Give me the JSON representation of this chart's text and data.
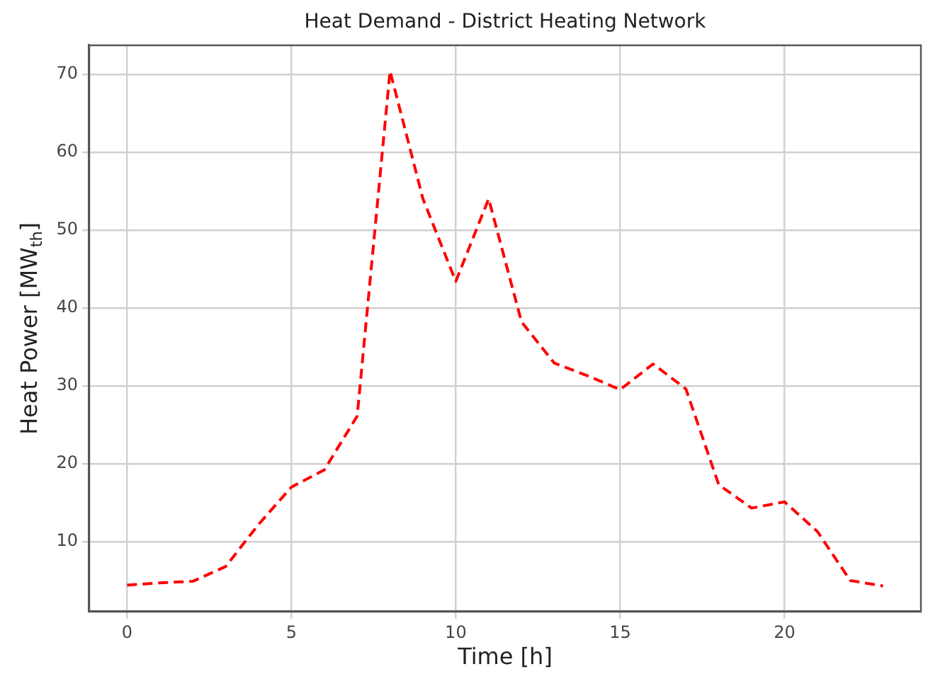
{
  "chart_data": {
    "type": "line",
    "title": "Heat Demand - District Heating Network",
    "xlabel": "Time [h]",
    "ylabel": "Heat Power [MW$_{th}$]",
    "x": [
      0,
      1,
      2,
      3,
      4,
      5,
      6,
      7,
      8,
      9,
      10,
      11,
      12,
      13,
      14,
      15,
      16,
      17,
      18,
      19,
      20,
      21,
      22,
      23
    ],
    "series": [
      {
        "color": "#ff0000",
        "values": [
          4.4,
          4.7,
          4.9,
          6.8,
          12.2,
          17.0,
          19.2,
          26.1,
          70.4,
          54.0,
          43.4,
          54.0,
          38.2,
          32.9,
          31.3,
          29.5,
          32.8,
          29.6,
          17.3,
          14.3,
          15.1,
          11.3,
          5.0,
          4.3
        ]
      }
    ],
    "xlim": [
      -1.15,
      24.15
    ],
    "xticks": [
      0,
      5,
      10,
      15,
      20
    ],
    "ylim": [
      1.0,
      73.7
    ],
    "yticks": [
      10,
      20,
      30,
      40,
      50,
      60,
      70
    ],
    "grid": true,
    "legend": false,
    "marker": "none",
    "line_style": "dashed"
  }
}
